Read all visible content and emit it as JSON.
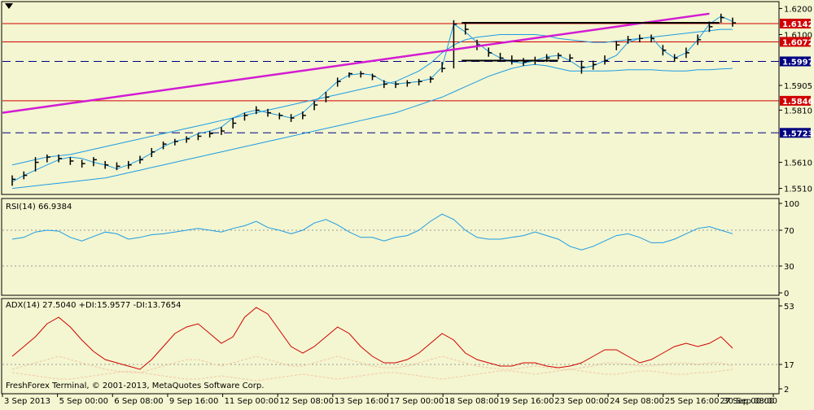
{
  "colors": {
    "background": "#F3F6D0",
    "grid": "#9a9a9a",
    "frame": "#000000",
    "price_bar": "#000000",
    "bollinger": "#1E9BE6",
    "trendline": "#D31BD3",
    "horizontal_red": "#D00000",
    "horizontal_blue_dash": "#000080",
    "rsi": "#1E9BE6",
    "adx": "#D00000",
    "plus_di": "#F4C5A5",
    "minus_di": "#F4C5A5",
    "level_tag_red": "#D00000",
    "level_tag_blue": "#000080"
  },
  "watermark": "FreshForex Terminal, © 2001-2013, MetaQuotes Software Corp.",
  "x_axis": {
    "labels": [
      "3 Sep 2013",
      "5 Sep 00:00",
      "6 Sep 08:00",
      "9 Sep 16:00",
      "11 Sep 00:00",
      "12 Sep 08:00",
      "13 Sep 16:00",
      "17 Sep 00:00",
      "18 Sep 08:00",
      "19 Sep 16:00",
      "23 Sep 00:00",
      "24 Sep 08:00",
      "25 Sep 16:00",
      "27 Sep 00:00",
      "30 Sep 08:00"
    ]
  },
  "chart_data": [
    {
      "type": "line",
      "panel": "price",
      "y_ticks": [
        "1.6200",
        "1.6100",
        "1.5905",
        "1.5810",
        "1.5610",
        "1.5510"
      ],
      "ylim": [
        1.549,
        1.622
      ],
      "levels": [
        {
          "value": 1.6142,
          "label": "1.6142",
          "style": "solid",
          "color": "red"
        },
        {
          "value": 1.6072,
          "label": "1.6072",
          "style": "solid",
          "color": "red"
        },
        {
          "value": 1.5997,
          "label": "1.5997",
          "style": "dashed",
          "color": "blue"
        },
        {
          "value": 1.5846,
          "label": "1.5846",
          "style": "solid",
          "color": "red"
        },
        {
          "value": 1.5723,
          "label": "1.5723",
          "style": "dashed",
          "color": "blue"
        }
      ],
      "series": [
        {
          "values": [
            1.5535,
            1.556,
            1.558,
            1.56,
            1.562,
            1.563,
            1.5625,
            1.561,
            1.56,
            1.5585,
            1.56,
            1.562,
            1.5645,
            1.567,
            1.569,
            1.57,
            1.572,
            1.573,
            1.5745,
            1.578,
            1.58,
            1.581,
            1.58,
            1.579,
            1.578,
            1.58,
            1.584,
            1.588,
            1.592,
            1.5945,
            1.595,
            1.5945,
            1.592,
            1.591,
            1.5915,
            1.592,
            1.593,
            1.5975,
            1.614,
            1.611,
            1.607,
            1.6035,
            1.601,
            1.5995,
            1.599,
            1.6,
            1.6015,
            1.602,
            1.6,
            1.597,
            1.598,
            1.6,
            1.602,
            1.607,
            1.6085,
            1.609,
            1.604,
            1.601,
            1.603,
            1.608,
            1.614,
            1.617,
            1.615
          ]
        },
        {
          "values": [
            1.56,
            1.561,
            1.562,
            1.563,
            1.5635,
            1.564,
            1.565,
            1.566,
            1.567,
            1.568,
            1.569,
            1.57,
            1.571,
            1.572,
            1.573,
            1.574,
            1.575,
            1.576,
            1.577,
            1.578,
            1.579,
            1.58,
            1.581,
            1.582,
            1.583,
            1.584,
            1.585,
            1.586,
            1.587,
            1.588,
            1.589,
            1.59,
            1.591,
            1.592,
            1.594,
            1.596,
            1.599,
            1.603,
            1.606,
            1.608,
            1.609,
            1.6095,
            1.61,
            1.61,
            1.61,
            1.61,
            1.6095,
            1.6085,
            1.608,
            1.6075,
            1.607,
            1.607,
            1.6075,
            1.608,
            1.6085,
            1.609,
            1.6095,
            1.61,
            1.6105,
            1.611,
            1.6115,
            1.612,
            1.612
          ]
        },
        {
          "values": [
            1.551,
            1.5515,
            1.552,
            1.5525,
            1.553,
            1.5535,
            1.554,
            1.5545,
            1.555,
            1.556,
            1.557,
            1.558,
            1.559,
            1.56,
            1.561,
            1.562,
            1.563,
            1.564,
            1.565,
            1.566,
            1.567,
            1.568,
            1.569,
            1.57,
            1.571,
            1.572,
            1.573,
            1.574,
            1.575,
            1.576,
            1.577,
            1.578,
            1.579,
            1.58,
            1.5815,
            1.583,
            1.5845,
            1.586,
            1.588,
            1.59,
            1.592,
            1.594,
            1.5955,
            1.597,
            1.598,
            1.5985,
            1.598,
            1.597,
            1.596,
            1.596,
            1.596,
            1.596,
            1.5962,
            1.5965,
            1.5965,
            1.5965,
            1.5962,
            1.596,
            1.596,
            1.5965,
            1.5965,
            1.5968,
            1.597
          ]
        }
      ],
      "trendline": [
        [
          1.58,
          1.6145
        ],
        [
          1.58,
          1.618
        ]
      ],
      "resistance_segments": [
        {
          "from": 0.595,
          "to": 0.93,
          "value": 1.6145
        },
        {
          "from": 0.595,
          "to": 0.72,
          "value": 1.6
        }
      ],
      "bars": {
        "closes": [
          1.5545,
          1.556,
          1.561,
          1.563,
          1.5625,
          1.5615,
          1.5605,
          1.562,
          1.56,
          1.5595,
          1.56,
          1.562,
          1.565,
          1.568,
          1.569,
          1.57,
          1.571,
          1.572,
          1.573,
          1.576,
          1.579,
          1.581,
          1.58,
          1.579,
          1.578,
          1.579,
          1.583,
          1.586,
          1.592,
          1.595,
          1.595,
          1.594,
          1.591,
          1.591,
          1.5915,
          1.592,
          1.593,
          1.597,
          1.614,
          1.612,
          1.606,
          1.603,
          1.601,
          1.6,
          1.5995,
          1.6,
          1.601,
          1.602,
          1.601,
          1.5975,
          1.5985,
          1.6,
          1.606,
          1.608,
          1.6085,
          1.6085,
          1.604,
          1.601,
          1.603,
          1.608,
          1.613,
          1.6165,
          1.6145
        ],
        "highs": [
          1.556,
          1.5575,
          1.563,
          1.564,
          1.564,
          1.563,
          1.562,
          1.563,
          1.5615,
          1.561,
          1.5615,
          1.5635,
          1.5665,
          1.569,
          1.57,
          1.571,
          1.572,
          1.573,
          1.5745,
          1.578,
          1.58,
          1.5825,
          1.5815,
          1.58,
          1.5795,
          1.5805,
          1.5845,
          1.588,
          1.5935,
          1.5955,
          1.596,
          1.595,
          1.5925,
          1.592,
          1.5925,
          1.593,
          1.594,
          1.5995,
          1.6155,
          1.6145,
          1.608,
          1.605,
          1.603,
          1.602,
          1.601,
          1.6015,
          1.6025,
          1.603,
          1.6025,
          1.6,
          1.6,
          1.602,
          1.6075,
          1.6095,
          1.61,
          1.61,
          1.606,
          1.6025,
          1.605,
          1.61,
          1.615,
          1.618,
          1.6165
        ],
        "lows": [
          1.552,
          1.5545,
          1.5575,
          1.561,
          1.561,
          1.56,
          1.559,
          1.5595,
          1.5585,
          1.558,
          1.5585,
          1.5605,
          1.563,
          1.566,
          1.5675,
          1.5685,
          1.5695,
          1.5705,
          1.5715,
          1.574,
          1.577,
          1.5795,
          1.5785,
          1.5775,
          1.5765,
          1.5775,
          1.581,
          1.584,
          1.59,
          1.5935,
          1.5935,
          1.5925,
          1.5895,
          1.5895,
          1.59,
          1.5905,
          1.5915,
          1.5955,
          1.597,
          1.61,
          1.604,
          1.6015,
          1.5995,
          1.5985,
          1.598,
          1.5985,
          1.5995,
          1.6005,
          1.5995,
          1.595,
          1.5965,
          1.5985,
          1.604,
          1.6065,
          1.607,
          1.607,
          1.602,
          1.5995,
          1.601,
          1.606,
          1.611,
          1.6145,
          1.613
        ]
      }
    },
    {
      "type": "line",
      "panel": "rsi",
      "title": "RSI(14) 66.9384",
      "y_ticks": [
        "100",
        "70",
        "30",
        "0"
      ],
      "ylim": [
        0,
        100
      ],
      "levels": [
        70,
        30
      ],
      "series": [
        {
          "values": [
            60,
            62,
            68,
            70,
            69,
            62,
            58,
            63,
            68,
            66,
            60,
            62,
            65,
            66,
            68,
            70,
            72,
            70,
            68,
            72,
            75,
            80,
            73,
            70,
            66,
            70,
            78,
            82,
            76,
            68,
            62,
            62,
            58,
            62,
            64,
            70,
            80,
            88,
            82,
            70,
            62,
            60,
            60,
            62,
            64,
            68,
            64,
            60,
            52,
            48,
            52,
            58,
            64,
            66,
            62,
            56,
            56,
            60,
            66,
            72,
            74,
            70,
            66
          ]
        }
      ]
    },
    {
      "type": "line",
      "panel": "adx",
      "title": "ADX(14) 27.5040 +DI:15.9577 -DI:13.7654",
      "y_ticks": [
        "53",
        "17",
        "2"
      ],
      "ylim": [
        0,
        55
      ],
      "levels": [
        17
      ],
      "series": [
        {
          "values": [
            22,
            28,
            34,
            42,
            46,
            40,
            32,
            25,
            20,
            18,
            16,
            14,
            20,
            28,
            36,
            40,
            42,
            36,
            30,
            34,
            46,
            52,
            48,
            38,
            28,
            24,
            28,
            34,
            40,
            36,
            28,
            22,
            18,
            18,
            20,
            24,
            30,
            36,
            32,
            24,
            20,
            18,
            16,
            16,
            18,
            18,
            16,
            15,
            16,
            18,
            22,
            26,
            26,
            22,
            18,
            20,
            24,
            28,
            30,
            28,
            30,
            34,
            27
          ]
        },
        {
          "values": [
            14,
            16,
            18,
            20,
            22,
            20,
            18,
            16,
            14,
            13,
            12,
            12,
            14,
            16,
            18,
            20,
            20,
            18,
            16,
            18,
            20,
            22,
            20,
            18,
            16,
            16,
            18,
            20,
            22,
            20,
            18,
            16,
            15,
            15,
            16,
            18,
            20,
            22,
            20,
            18,
            16,
            15,
            14,
            14,
            15,
            16,
            15,
            14,
            14,
            15,
            16,
            18,
            18,
            17,
            16,
            16,
            17,
            18,
            18,
            17,
            18,
            18,
            16
          ]
        },
        {
          "values": [
            12,
            11,
            10,
            9,
            8,
            8,
            9,
            10,
            11,
            12,
            13,
            12,
            11,
            10,
            9,
            8,
            8,
            9,
            10,
            9,
            8,
            7,
            8,
            9,
            10,
            11,
            10,
            9,
            8,
            9,
            10,
            11,
            12,
            12,
            11,
            10,
            9,
            8,
            9,
            10,
            11,
            12,
            13,
            13,
            12,
            11,
            12,
            13,
            14,
            13,
            12,
            11,
            11,
            12,
            13,
            13,
            12,
            11,
            11,
            12,
            12,
            13,
            14
          ]
        }
      ]
    }
  ]
}
